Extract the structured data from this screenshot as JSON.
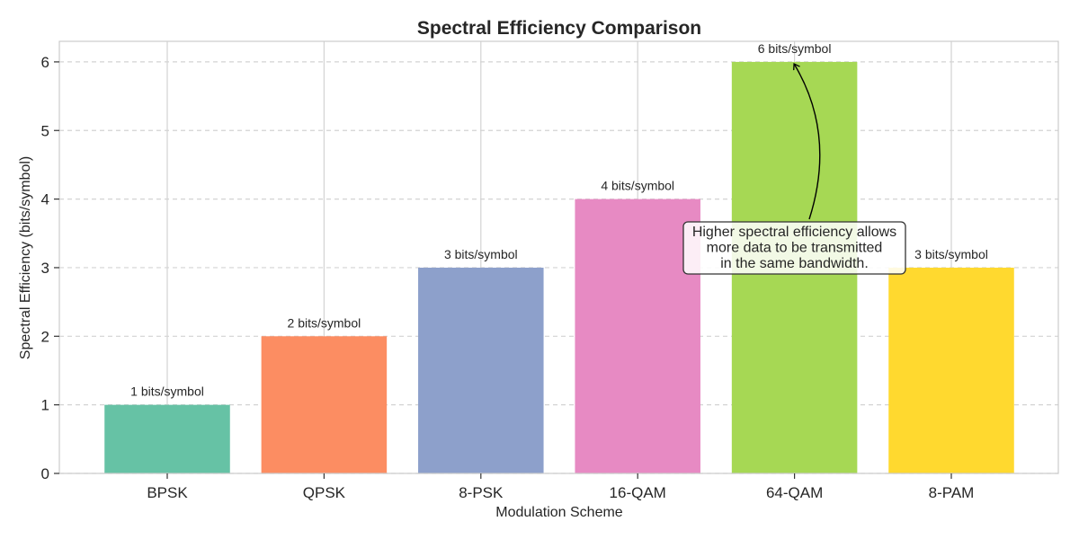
{
  "chart_data": {
    "type": "bar",
    "title": "Spectral Efficiency Comparison",
    "xlabel": "Modulation Scheme",
    "ylabel": "Spectral Efficiency (bits/symbol)",
    "categories": [
      "BPSK",
      "QPSK",
      "8-PSK",
      "16-QAM",
      "64-QAM",
      "8-PAM"
    ],
    "values": [
      1,
      2,
      3,
      4,
      6,
      3
    ],
    "data_labels": [
      "1 bits/symbol",
      "2 bits/symbol",
      "3 bits/symbol",
      "4 bits/symbol",
      "6 bits/symbol",
      "3 bits/symbol"
    ],
    "colors": [
      "#66c2a5",
      "#fc8d62",
      "#8da0cb",
      "#e78ac3",
      "#a6d854",
      "#ffd92f"
    ],
    "ylim": [
      0,
      6.3
    ],
    "yticks": [
      0,
      1,
      2,
      3,
      4,
      5,
      6
    ],
    "grid": true,
    "annotation": {
      "lines": [
        "Higher spectral efficiency allows",
        "more data to be transmitted",
        "in the same bandwidth."
      ],
      "points_to_category": "64-QAM",
      "points_to_value": 6
    }
  }
}
